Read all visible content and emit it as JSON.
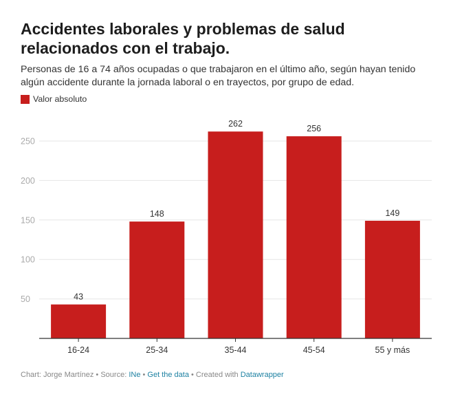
{
  "header": {
    "title": "Accidentes laborales y problemas de salud relacionados con el trabajo.",
    "subtitle": "Personas de 16 a 74 años ocupadas o que trabajaron en el último año, según hayan tenido algún accidente durante la jornada laboral o en trayectos, por grupo de edad."
  },
  "legend": {
    "label": "Valor absoluto"
  },
  "colors": {
    "bar": "#c71e1d",
    "gridline": "#e6e6e6",
    "tick_text": "#aaaaaa",
    "category_text": "#333333",
    "value_text": "#333333",
    "baseline": "#333333"
  },
  "chart_data": {
    "type": "bar",
    "categories": [
      "16-24",
      "25-34",
      "35-44",
      "45-54",
      "55 y más"
    ],
    "series": [
      {
        "name": "Valor absoluto",
        "values": [
          43,
          148,
          262,
          256,
          149
        ]
      }
    ],
    "data_labels": [
      "43",
      "148",
      "262",
      "256",
      "149"
    ],
    "yticks": [
      50,
      100,
      150,
      200,
      250
    ],
    "ylim": [
      0,
      275
    ],
    "grid": true,
    "legend_position": "top-left",
    "title": "Accidentes laborales y problemas de salud relacionados con el trabajo.",
    "xlabel": "",
    "ylabel": ""
  },
  "footer": {
    "chart_by": "Chart: Jorge Martínez",
    "sep1": " • ",
    "source_prefix": "Source: ",
    "source_link": "INe",
    "sep2": " • ",
    "get_data": "Get the data",
    "sep3": " • ",
    "created_with": "Created with ",
    "tool": "Datawrapper"
  }
}
